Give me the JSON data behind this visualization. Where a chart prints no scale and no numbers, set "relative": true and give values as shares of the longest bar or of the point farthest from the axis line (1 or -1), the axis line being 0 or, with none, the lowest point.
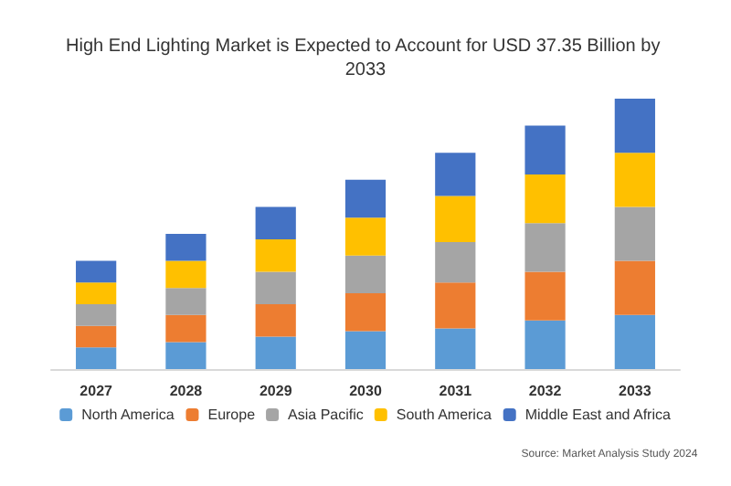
{
  "chart_data": {
    "type": "bar",
    "title": "High End Lighting Market is Expected to Account for USD 37.35 Billion by 2033",
    "categories": [
      "2027",
      "2028",
      "2029",
      "2030",
      "2031",
      "2032",
      "2033"
    ],
    "stacked": true,
    "relative": true,
    "legend": "bottom",
    "series": [
      {
        "name": "North America",
        "color": "#5b9bd5",
        "values": [
          0.08,
          0.1,
          0.12,
          0.14,
          0.15,
          0.18,
          0.2
        ]
      },
      {
        "name": "Europe",
        "color": "#ed7d31",
        "values": [
          0.08,
          0.1,
          0.12,
          0.14,
          0.17,
          0.18,
          0.2
        ]
      },
      {
        "name": "Asia Pacific",
        "color": "#a5a5a5",
        "values": [
          0.08,
          0.1,
          0.12,
          0.14,
          0.15,
          0.18,
          0.2
        ]
      },
      {
        "name": "South America",
        "color": "#ffc000",
        "values": [
          0.08,
          0.1,
          0.12,
          0.14,
          0.17,
          0.18,
          0.2
        ]
      },
      {
        "name": "Middle East and Africa",
        "color": "#4472c4",
        "values": [
          0.08,
          0.1,
          0.12,
          0.14,
          0.16,
          0.18,
          0.2
        ]
      }
    ],
    "annotations": [
      "Source: Market Analysis Study 2024"
    ]
  }
}
